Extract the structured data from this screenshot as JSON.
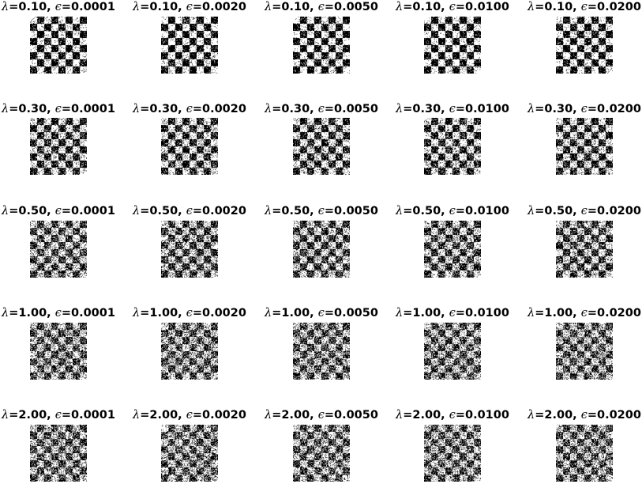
{
  "chart_data": {
    "type": "heatmap",
    "title": "",
    "grid": false,
    "axes": "off",
    "rows_lambda": [
      "0.10",
      "0.30",
      "0.50",
      "1.00",
      "2.00"
    ],
    "cols_epsilon": [
      "0.0001",
      "0.0020",
      "0.0050",
      "0.0100",
      "0.0200"
    ],
    "lambda_symbol": "λ",
    "epsilon_symbol": "ϵ",
    "checkerboard_squares_per_side": 8,
    "colormap": [
      "#000000",
      "#ffffff"
    ],
    "panels": [
      [
        {
          "lambda": "0.10",
          "epsilon": "0.0001",
          "label": "λ=0.10, ϵ=0.0001"
        },
        {
          "lambda": "0.10",
          "epsilon": "0.0020",
          "label": "λ=0.10, ϵ=0.0020"
        },
        {
          "lambda": "0.10",
          "epsilon": "0.0050",
          "label": "λ=0.10, ϵ=0.0050"
        },
        {
          "lambda": "0.10",
          "epsilon": "0.0100",
          "label": "λ=0.10, ϵ=0.0100"
        },
        {
          "lambda": "0.10",
          "epsilon": "0.0200",
          "label": "λ=0.10, ϵ=0.0200"
        }
      ],
      [
        {
          "lambda": "0.30",
          "epsilon": "0.0001",
          "label": "λ=0.30, ϵ=0.0001"
        },
        {
          "lambda": "0.30",
          "epsilon": "0.0020",
          "label": "λ=0.30, ϵ=0.0020"
        },
        {
          "lambda": "0.30",
          "epsilon": "0.0050",
          "label": "λ=0.30, ϵ=0.0050"
        },
        {
          "lambda": "0.30",
          "epsilon": "0.0100",
          "label": "λ=0.30, ϵ=0.0100"
        },
        {
          "lambda": "0.30",
          "epsilon": "0.0200",
          "label": "λ=0.30, ϵ=0.0200"
        }
      ],
      [
        {
          "lambda": "0.50",
          "epsilon": "0.0001",
          "label": "λ=0.50, ϵ=0.0001"
        },
        {
          "lambda": "0.50",
          "epsilon": "0.0020",
          "label": "λ=0.50, ϵ=0.0020"
        },
        {
          "lambda": "0.50",
          "epsilon": "0.0050",
          "label": "λ=0.50, ϵ=0.0050"
        },
        {
          "lambda": "0.50",
          "epsilon": "0.0100",
          "label": "λ=0.50, ϵ=0.0100"
        },
        {
          "lambda": "0.50",
          "epsilon": "0.0200",
          "label": "λ=0.50, ϵ=0.0200"
        }
      ],
      [
        {
          "lambda": "1.00",
          "epsilon": "0.0001",
          "label": "λ=1.00, ϵ=0.0001"
        },
        {
          "lambda": "1.00",
          "epsilon": "0.0020",
          "label": "λ=1.00, ϵ=0.0020"
        },
        {
          "lambda": "1.00",
          "epsilon": "0.0050",
          "label": "λ=1.00, ϵ=0.0050"
        },
        {
          "lambda": "1.00",
          "epsilon": "0.0100",
          "label": "λ=1.00, ϵ=0.0100"
        },
        {
          "lambda": "1.00",
          "epsilon": "0.0200",
          "label": "λ=1.00, ϵ=0.0200"
        }
      ],
      [
        {
          "lambda": "2.00",
          "epsilon": "0.0001",
          "label": "λ=2.00, ϵ=0.0001"
        },
        {
          "lambda": "2.00",
          "epsilon": "0.0020",
          "label": "λ=2.00, ϵ=0.0020"
        },
        {
          "lambda": "2.00",
          "epsilon": "0.0050",
          "label": "λ=2.00, ϵ=0.0050"
        },
        {
          "lambda": "2.00",
          "epsilon": "0.0100",
          "label": "λ=2.00, ϵ=0.0100"
        },
        {
          "lambda": "2.00",
          "epsilon": "0.0200",
          "label": "λ=2.00, ϵ=0.0200"
        }
      ]
    ]
  }
}
